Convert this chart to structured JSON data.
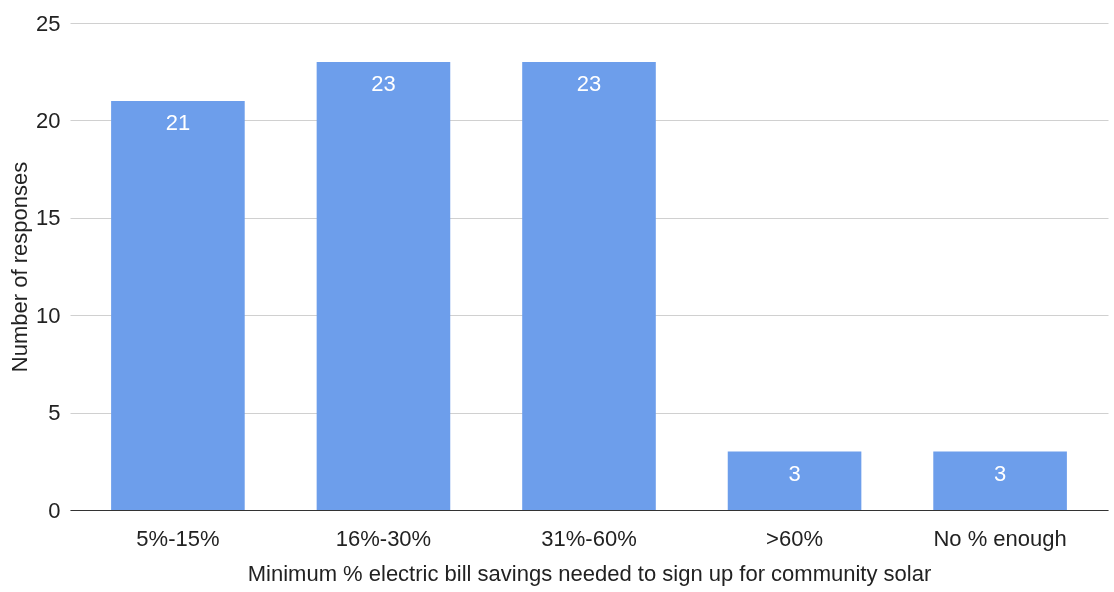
{
  "chart_data": {
    "type": "bar",
    "xlabel": "Minimum % electric bill savings needed to sign up for community solar",
    "ylabel": "Number of responses",
    "categories": [
      "5%-15%",
      "16%-30%",
      "31%-60%",
      ">60%",
      "No % enough"
    ],
    "values": [
      21,
      23,
      23,
      3,
      3
    ],
    "color": "#6d9eeb",
    "ylim": [
      0,
      25
    ],
    "yticks": [
      0,
      5,
      10,
      15,
      20,
      25
    ],
    "grid": "y",
    "data_labels": true
  }
}
